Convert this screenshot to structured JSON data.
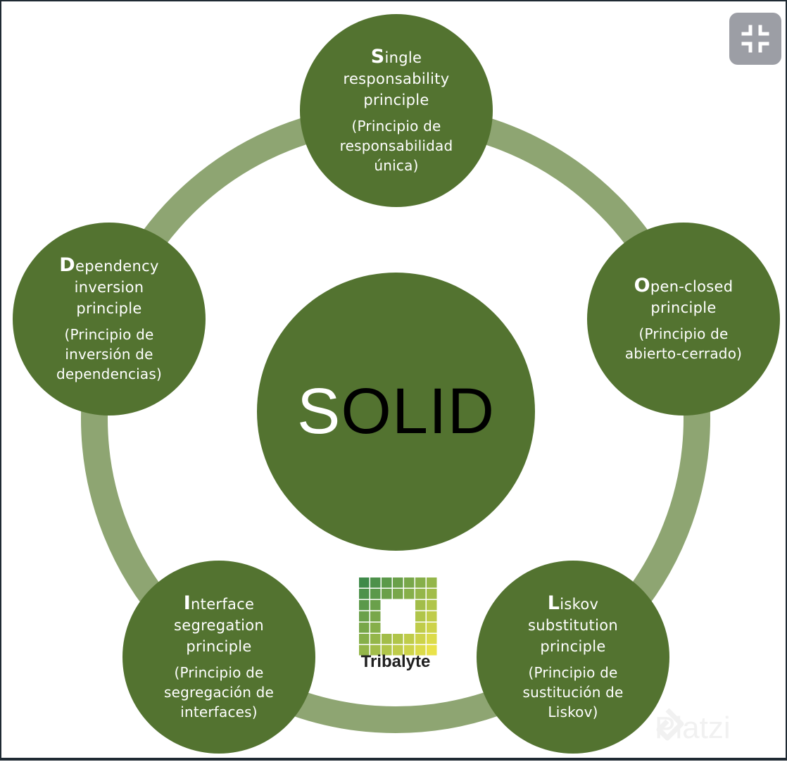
{
  "center": {
    "first": "S",
    "rest": "OLID"
  },
  "principles": [
    {
      "initial": "S",
      "title_rest": "ingle\nresponsability\nprinciple",
      "spanish": "(Principio de\nresponsabilidad\núnica)"
    },
    {
      "initial": "O",
      "title_rest": "pen-closed\nprinciple",
      "spanish": "(Principio de\nabierto-cerrado)"
    },
    {
      "initial": "L",
      "title_rest": "iskov\nsubstitution\nprinciple",
      "spanish": "(Principio de\nsustitución de\nLiskov)"
    },
    {
      "initial": "I",
      "title_rest": "nterface\nsegregation\nprinciple",
      "spanish": "(Principio de\nsegregación de\ninterfaces)"
    },
    {
      "initial": "D",
      "title_rest": "ependency\ninversion\nprinciple",
      "spanish": "(Principio de\ninversión de\ndependencias)"
    }
  ],
  "logo": {
    "name": "Tribalyte"
  },
  "watermark": {
    "text": "Platzi"
  },
  "colors": {
    "node": "#537330",
    "ring": "#8ea572",
    "center_first": "#ffffff",
    "center_rest": "#000000",
    "button": "#9c9ea5"
  },
  "icons": {
    "expand_button": "collapse-arrows-icon",
    "logo": "tribalyte-grid-logo-icon",
    "watermark": "platzi-logo-icon"
  }
}
